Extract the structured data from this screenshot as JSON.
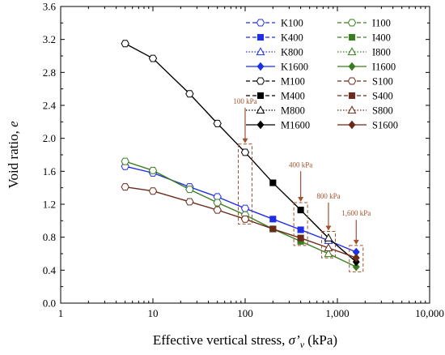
{
  "chart_data": {
    "type": "line",
    "xscale": "log",
    "xlim": [
      1,
      10000
    ],
    "ylim": [
      0.0,
      3.6
    ],
    "xlabel_text": "Effective vertical stress, ",
    "xlabel_symbol": "σ’",
    "xlabel_sub": "v",
    "xlabel_unit": " (kPa)",
    "ylabel_text": "Void ratio, ",
    "ylabel_symbol": "e",
    "xticks": [
      1,
      10,
      100,
      1000,
      10000
    ],
    "xtick_labels": [
      "1",
      "10",
      "100",
      "1,000",
      "10,000"
    ],
    "yticks": [
      0.0,
      0.4,
      0.8,
      1.2,
      1.6,
      2.0,
      2.4,
      2.8,
      3.2,
      3.6
    ],
    "ytick_labels": [
      "0.0",
      "0.4",
      "0.8",
      "1.2",
      "1.6",
      "2.0",
      "2.4",
      "2.8",
      "3.2",
      "3.6"
    ],
    "colors": {
      "K": "#1f2ee6",
      "I": "#3a7d1f",
      "M": "#000000",
      "S": "#6b2a1a",
      "annotation": "#a0522d"
    },
    "curves": [
      {
        "group": "K",
        "color": "#1f2ee6",
        "x": [
          5,
          10,
          25,
          50,
          100,
          200,
          400,
          800,
          1600
        ],
        "y": [
          1.66,
          1.58,
          1.41,
          1.29,
          1.15,
          1.02,
          0.89,
          0.76,
          0.62
        ]
      },
      {
        "group": "I",
        "color": "#3a7d1f",
        "x": [
          5,
          10,
          25,
          50,
          100,
          200,
          400,
          800,
          1600
        ],
        "y": [
          1.72,
          1.61,
          1.38,
          1.22,
          1.07,
          0.9,
          0.75,
          0.6,
          0.44
        ]
      },
      {
        "group": "M",
        "color": "#000000",
        "x": [
          5,
          10,
          25,
          50,
          100,
          200,
          400,
          800,
          1600
        ],
        "y": [
          3.15,
          2.97,
          2.54,
          2.18,
          1.83,
          1.46,
          1.13,
          0.79,
          0.5
        ]
      },
      {
        "group": "S",
        "color": "#6b2a1a",
        "x": [
          5,
          10,
          25,
          50,
          100,
          200,
          400,
          800,
          1600
        ],
        "y": [
          1.41,
          1.36,
          1.23,
          1.13,
          1.02,
          0.9,
          0.79,
          0.67,
          0.55
        ]
      }
    ],
    "legend": {
      "placement": "top-right",
      "entries": [
        {
          "name": "K100",
          "color": "#1f2ee6",
          "marker": "hexagon-open",
          "dash": "5,3"
        },
        {
          "name": "I100",
          "color": "#3a7d1f",
          "marker": "hexagon-open",
          "dash": "5,3"
        },
        {
          "name": "K400",
          "color": "#1f2ee6",
          "marker": "square",
          "dash": "5,3"
        },
        {
          "name": "I400",
          "color": "#3a7d1f",
          "marker": "square",
          "dash": "5,3"
        },
        {
          "name": "K800",
          "color": "#1f2ee6",
          "marker": "triangle-open",
          "dash": "1.5,2"
        },
        {
          "name": "I800",
          "color": "#3a7d1f",
          "marker": "triangle-open",
          "dash": "1.5,2"
        },
        {
          "name": "K1600",
          "color": "#1f2ee6",
          "marker": "diamond",
          "dash": ""
        },
        {
          "name": "I1600",
          "color": "#3a7d1f",
          "marker": "diamond",
          "dash": ""
        },
        {
          "name": "M100",
          "color": "#000000",
          "marker": "hexagon-open",
          "dash": "5,3"
        },
        {
          "name": "S100",
          "color": "#6b2a1a",
          "marker": "hexagon-open",
          "dash": "5,3"
        },
        {
          "name": "M400",
          "color": "#000000",
          "marker": "square",
          "dash": "5,3"
        },
        {
          "name": "S400",
          "color": "#6b2a1a",
          "marker": "square",
          "dash": "5,3"
        },
        {
          "name": "M800",
          "color": "#000000",
          "marker": "triangle-open",
          "dash": "1.5,2"
        },
        {
          "name": "S800",
          "color": "#6b2a1a",
          "marker": "triangle-open",
          "dash": "1.5,2"
        },
        {
          "name": "M1600",
          "color": "#000000",
          "marker": "diamond",
          "dash": ""
        },
        {
          "name": "S1600",
          "color": "#6b2a1a",
          "marker": "diamond",
          "dash": ""
        }
      ]
    },
    "annotations": [
      {
        "label": "100 kPa",
        "x": 100,
        "ymin": 0.96,
        "ymax": 1.93,
        "text_y": 2.42
      },
      {
        "label": "400 kPa",
        "x": 400,
        "ymin": 0.7,
        "ymax": 1.22,
        "text_y": 1.65
      },
      {
        "label": "800 kPa",
        "x": 800,
        "ymin": 0.55,
        "ymax": 0.87,
        "text_y": 1.27
      },
      {
        "label": "1,600 kPa",
        "x": 1600,
        "ymin": 0.38,
        "ymax": 0.7,
        "text_y": 1.06
      }
    ]
  }
}
